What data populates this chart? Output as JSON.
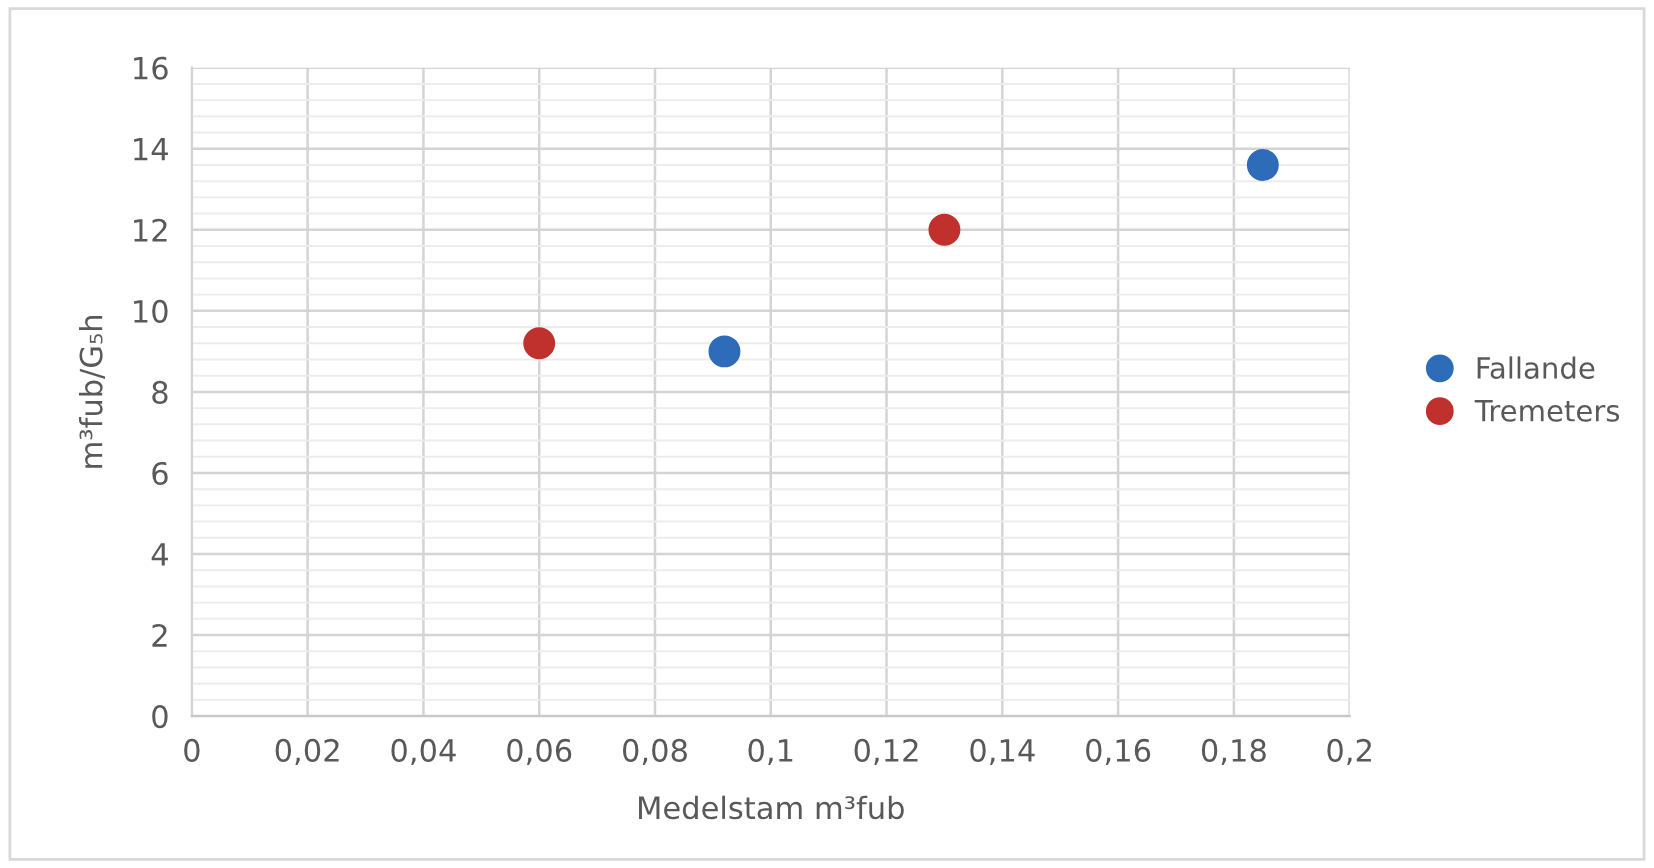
{
  "chart_data": {
    "type": "scatter",
    "xlabel": "Medelstam m³fub",
    "ylabel": "m³fub/G₅h",
    "xlim": [
      0,
      0.2
    ],
    "xticks": [
      {
        "value": 0,
        "label": "0"
      },
      {
        "value": 0.02,
        "label": "0,02"
      },
      {
        "value": 0.04,
        "label": "0,04"
      },
      {
        "value": 0.06,
        "label": "0,06"
      },
      {
        "value": 0.08,
        "label": "0,08"
      },
      {
        "value": 0.1,
        "label": "0,1"
      },
      {
        "value": 0.12,
        "label": "0,12"
      },
      {
        "value": 0.14,
        "label": "0,14"
      },
      {
        "value": 0.16,
        "label": "0,16"
      },
      {
        "value": 0.18,
        "label": "0,18"
      },
      {
        "value": 0.2,
        "label": "0,2"
      }
    ],
    "ylim": [
      0,
      16
    ],
    "yticks": [
      0,
      2,
      4,
      6,
      8,
      10,
      12,
      14,
      16
    ],
    "grid": true,
    "legend": "right",
    "marker": "circle",
    "series": [
      {
        "name": "Fallande",
        "color": "#2e6bb8",
        "x": [
          0.092,
          0.185
        ],
        "values": [
          9.0,
          13.6
        ]
      },
      {
        "name": "Tremeters",
        "color": "#c0302c",
        "x": [
          0.06,
          0.13
        ],
        "values": [
          9.2,
          12.0
        ]
      }
    ]
  }
}
